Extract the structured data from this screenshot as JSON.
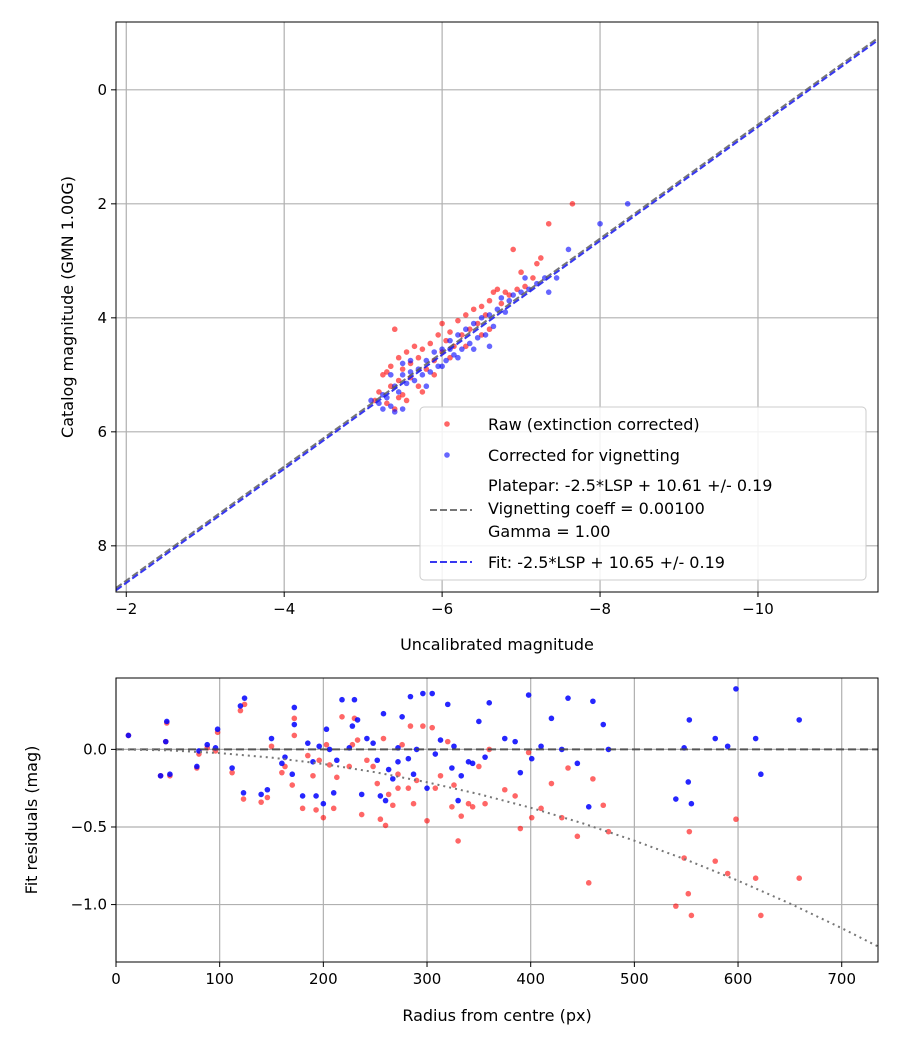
{
  "chart_data": [
    {
      "type": "scatter",
      "xlabel": "Uncalibrated magnitude",
      "ylabel": "Catalog magnitude (GMN 1.00G)",
      "xlim": [
        -1.87,
        -11.52
      ],
      "ylim": [
        8.81,
        -1.19
      ],
      "x_ticks": [
        -2,
        -4,
        -6,
        -8,
        -10
      ],
      "x_tick_labels": [
        "−2",
        "−4",
        "−6",
        "−8",
        "−10"
      ],
      "y_ticks": [
        0,
        2,
        4,
        6,
        8
      ],
      "y_tick_labels": [
        "0",
        "2",
        "4",
        "6",
        "8"
      ],
      "grid": true,
      "legend_position": "bottom-right",
      "colors": {
        "raw": "#ff0000",
        "corrected": "#0000ff",
        "platepar": "#555555",
        "fit": "#2222ee"
      },
      "series": [
        {
          "name": "Raw (extinction corrected)",
          "kind": "points",
          "points": [
            [
              -5.15,
              5.45
            ],
            [
              -5.2,
              5.3
            ],
            [
              -5.25,
              5.0
            ],
            [
              -5.3,
              4.95
            ],
            [
              -5.3,
              5.5
            ],
            [
              -5.35,
              4.85
            ],
            [
              -5.35,
              5.2
            ],
            [
              -5.4,
              4.2
            ],
            [
              -5.4,
              5.6
            ],
            [
              -5.45,
              4.7
            ],
            [
              -5.45,
              5.1
            ],
            [
              -5.5,
              4.9
            ],
            [
              -5.5,
              5.35
            ],
            [
              -5.55,
              4.6
            ],
            [
              -5.55,
              5.45
            ],
            [
              -5.6,
              4.8
            ],
            [
              -5.6,
              5.05
            ],
            [
              -5.65,
              4.5
            ],
            [
              -5.7,
              4.7
            ],
            [
              -5.7,
              5.2
            ],
            [
              -5.75,
              4.55
            ],
            [
              -5.8,
              4.9
            ],
            [
              -5.85,
              4.45
            ],
            [
              -5.9,
              4.75
            ],
            [
              -5.95,
              4.3
            ],
            [
              -6.0,
              4.6
            ],
            [
              -6.0,
              4.1
            ],
            [
              -6.05,
              4.4
            ],
            [
              -6.1,
              4.25
            ],
            [
              -6.15,
              4.5
            ],
            [
              -6.2,
              4.05
            ],
            [
              -6.25,
              4.3
            ],
            [
              -6.3,
              3.95
            ],
            [
              -6.35,
              4.2
            ],
            [
              -6.4,
              3.85
            ],
            [
              -6.45,
              4.1
            ],
            [
              -6.5,
              3.8
            ],
            [
              -6.55,
              3.95
            ],
            [
              -6.6,
              3.7
            ],
            [
              -6.6,
              4.2
            ],
            [
              -6.7,
              3.5
            ],
            [
              -6.75,
              3.75
            ],
            [
              -6.8,
              3.55
            ],
            [
              -6.85,
              3.6
            ],
            [
              -6.9,
              2.8
            ],
            [
              -6.95,
              3.5
            ],
            [
              -7.0,
              3.2
            ],
            [
              -7.05,
              3.45
            ],
            [
              -7.15,
              3.3
            ],
            [
              -7.2,
              3.05
            ],
            [
              -7.25,
              2.95
            ],
            [
              -7.35,
              2.35
            ],
            [
              -7.65,
              2.0
            ],
            [
              -6.1,
              4.7
            ],
            [
              -5.9,
              5.0
            ],
            [
              -6.3,
              4.5
            ],
            [
              -5.45,
              5.4
            ],
            [
              -6.5,
              4.3
            ],
            [
              -6.65,
              3.55
            ],
            [
              -5.75,
              5.3
            ]
          ]
        },
        {
          "name": "Corrected for vignetting",
          "kind": "points",
          "points": [
            [
              -5.1,
              5.45
            ],
            [
              -5.2,
              5.5
            ],
            [
              -5.25,
              5.35
            ],
            [
              -5.3,
              5.4
            ],
            [
              -5.35,
              5.55
            ],
            [
              -5.4,
              5.2
            ],
            [
              -5.45,
              5.3
            ],
            [
              -5.5,
              5.0
            ],
            [
              -5.5,
              5.6
            ],
            [
              -5.55,
              5.15
            ],
            [
              -5.6,
              4.95
            ],
            [
              -5.65,
              5.1
            ],
            [
              -5.7,
              4.9
            ],
            [
              -5.75,
              5.0
            ],
            [
              -5.8,
              4.75
            ],
            [
              -5.85,
              4.95
            ],
            [
              -5.9,
              4.6
            ],
            [
              -5.95,
              4.85
            ],
            [
              -6.0,
              4.55
            ],
            [
              -6.05,
              4.75
            ],
            [
              -6.1,
              4.4
            ],
            [
              -6.15,
              4.65
            ],
            [
              -6.2,
              4.3
            ],
            [
              -6.25,
              4.55
            ],
            [
              -6.3,
              4.2
            ],
            [
              -6.35,
              4.45
            ],
            [
              -6.4,
              4.1
            ],
            [
              -6.45,
              4.35
            ],
            [
              -6.5,
              4.0
            ],
            [
              -6.55,
              4.3
            ],
            [
              -6.6,
              3.95
            ],
            [
              -6.65,
              4.15
            ],
            [
              -6.7,
              3.85
            ],
            [
              -6.8,
              3.9
            ],
            [
              -6.85,
              3.7
            ],
            [
              -6.9,
              3.6
            ],
            [
              -7.0,
              3.55
            ],
            [
              -7.1,
              3.5
            ],
            [
              -7.2,
              3.4
            ],
            [
              -7.3,
              3.3
            ],
            [
              -7.35,
              3.55
            ],
            [
              -7.45,
              3.3
            ],
            [
              -7.6,
              2.8
            ],
            [
              -8.0,
              2.35
            ],
            [
              -8.35,
              2.0
            ],
            [
              -5.4,
              5.65
            ],
            [
              -5.6,
              4.75
            ],
            [
              -5.8,
              5.2
            ],
            [
              -6.0,
              4.85
            ],
            [
              -6.2,
              4.7
            ],
            [
              -6.4,
              4.55
            ],
            [
              -6.6,
              4.5
            ],
            [
              -5.35,
              5.0
            ],
            [
              -5.5,
              4.8
            ],
            [
              -6.75,
              3.65
            ],
            [
              -7.05,
              3.3
            ],
            [
              -5.25,
              5.6
            ],
            [
              -6.1,
              4.55
            ]
          ]
        },
        {
          "name": "Platepar: -2.5*LSP + 10.61 +/- 0.19",
          "name_line2": "Vignetting coeff = 0.00100",
          "name_line3": "Gamma = 1.00",
          "kind": "line",
          "intercept": 10.61,
          "slope": 1
        },
        {
          "name": "Fit: -2.5*LSP + 10.65 +/- 0.19",
          "kind": "line",
          "intercept": 10.65,
          "slope": 1
        }
      ]
    },
    {
      "type": "scatter",
      "xlabel": "Radius from centre (px)",
      "ylabel": "Fit residuals (mag)",
      "xlim": [
        0,
        735
      ],
      "ylim": [
        -1.37,
        0.46
      ],
      "x_ticks": [
        0,
        100,
        200,
        300,
        400,
        500,
        600,
        700
      ],
      "x_tick_labels": [
        "0",
        "100",
        "200",
        "300",
        "400",
        "500",
        "600",
        "700"
      ],
      "y_ticks": [
        0.0,
        -0.5,
        -1.0
      ],
      "y_tick_labels": [
        "0.0",
        "−0.5",
        "−1.0"
      ],
      "grid": true,
      "radius": [
        12,
        43,
        48,
        49,
        52,
        78,
        80,
        88,
        96,
        98,
        112,
        120,
        124,
        123,
        140,
        146,
        150,
        160,
        163,
        170,
        172,
        172,
        180,
        185,
        190,
        193,
        196,
        200,
        203,
        206,
        210,
        213,
        218,
        225,
        228,
        230,
        233,
        237,
        242,
        248,
        252,
        255,
        258,
        260,
        263,
        267,
        272,
        272,
        276,
        282,
        284,
        287,
        290,
        296,
        300,
        305,
        308,
        313,
        320,
        324,
        326,
        330,
        333,
        340,
        344,
        350,
        356,
        360,
        375,
        385,
        390,
        398,
        401,
        410,
        420,
        430,
        436,
        445,
        456,
        460,
        470,
        475,
        540,
        548,
        552,
        553,
        555,
        578,
        590,
        598,
        617,
        622,
        659
      ],
      "corrected": [
        0.09,
        -0.17,
        0.05,
        0.18,
        -0.16,
        -0.11,
        -0.01,
        0.03,
        0.01,
        0.13,
        -0.12,
        0.28,
        0.33,
        -0.28,
        -0.29,
        -0.26,
        0.07,
        -0.09,
        -0.05,
        -0.16,
        0.27,
        0.16,
        -0.3,
        0.04,
        -0.08,
        -0.3,
        0.02,
        -0.35,
        0.13,
        0.0,
        -0.28,
        -0.07,
        0.32,
        0.01,
        0.15,
        0.32,
        0.19,
        -0.29,
        0.07,
        0.04,
        -0.07,
        -0.3,
        0.23,
        -0.33,
        -0.13,
        -0.19,
        -0.08,
        0.01,
        0.21,
        -0.06,
        0.34,
        -0.16,
        0.0,
        0.36,
        -0.25,
        0.36,
        -0.03,
        0.06,
        0.29,
        -0.12,
        0.02,
        -0.33,
        -0.17,
        -0.08,
        -0.09,
        0.18,
        -0.05,
        0.3,
        0.07,
        0.05,
        -0.15,
        0.35,
        -0.06,
        0.02,
        0.2,
        0.0,
        0.33,
        -0.09,
        -0.37,
        0.31,
        0.16,
        0.0,
        -0.32,
        0.01,
        -0.21,
        0.19,
        -0.35,
        0.07,
        0.02,
        0.39,
        0.07,
        -0.16,
        0.19
      ],
      "raw": [
        0.09,
        -0.17,
        0.05,
        0.17,
        -0.17,
        -0.12,
        -0.03,
        0.01,
        -0.01,
        0.11,
        -0.15,
        0.25,
        0.29,
        -0.32,
        -0.34,
        -0.31,
        0.02,
        -0.15,
        -0.11,
        -0.23,
        0.2,
        0.09,
        -0.38,
        -0.04,
        -0.17,
        -0.39,
        -0.07,
        -0.44,
        0.03,
        -0.1,
        -0.38,
        -0.18,
        0.21,
        -0.11,
        0.03,
        0.2,
        0.06,
        -0.42,
        -0.07,
        -0.11,
        -0.22,
        -0.45,
        0.07,
        -0.49,
        -0.29,
        -0.36,
        -0.25,
        -0.16,
        0.03,
        -0.25,
        0.15,
        -0.35,
        -0.2,
        0.15,
        -0.46,
        0.14,
        -0.25,
        -0.17,
        0.05,
        -0.37,
        -0.23,
        -0.59,
        -0.43,
        -0.35,
        -0.37,
        -0.11,
        -0.35,
        0.0,
        -0.26,
        -0.3,
        -0.51,
        -0.02,
        -0.44,
        -0.38,
        -0.22,
        -0.44,
        -0.12,
        -0.56,
        -0.86,
        -0.19,
        -0.36,
        -0.53,
        -1.01,
        -0.7,
        -0.93,
        -0.53,
        -1.07,
        -0.72,
        -0.8,
        -0.45,
        -0.83,
        -1.07,
        -0.83
      ],
      "vignetting_curve": [
        [
          0,
          0
        ],
        [
          50,
          -0.006
        ],
        [
          100,
          -0.024
        ],
        [
          150,
          -0.053
        ],
        [
          200,
          -0.094
        ],
        [
          250,
          -0.147
        ],
        [
          300,
          -0.212
        ],
        [
          350,
          -0.288
        ],
        [
          400,
          -0.376
        ],
        [
          450,
          -0.476
        ],
        [
          500,
          -0.588
        ],
        [
          550,
          -0.711
        ],
        [
          600,
          -0.846
        ],
        [
          650,
          -0.993
        ],
        [
          700,
          -1.152
        ],
        [
          735,
          -1.27
        ]
      ],
      "zero_line": 0
    }
  ]
}
